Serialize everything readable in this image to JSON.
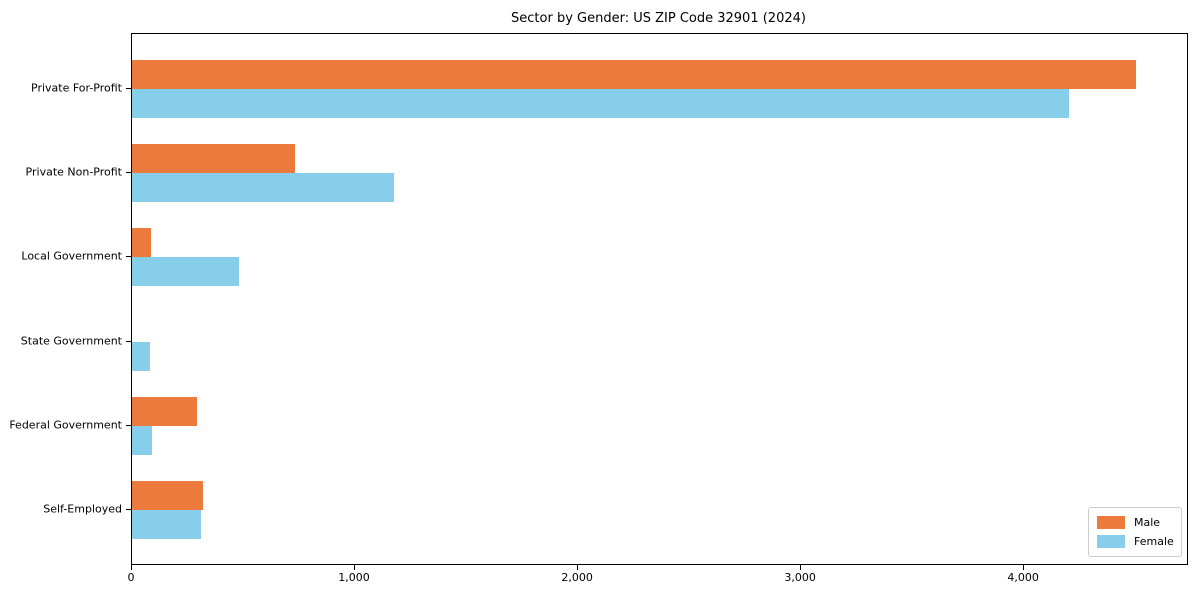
{
  "chart_data": {
    "type": "bar",
    "orientation": "horizontal",
    "title": "Sector by Gender: US ZIP Code 32901 (2024)",
    "xlabel": "",
    "ylabel": "",
    "categories": [
      "Private For-Profit",
      "Private Non-Profit",
      "Local Government",
      "State Government",
      "Federal Government",
      "Self-Employed"
    ],
    "series": [
      {
        "name": "Male",
        "color": "#ec7a3c",
        "values": [
          4500,
          730,
          85,
          0,
          290,
          320
        ]
      },
      {
        "name": "Female",
        "color": "#87ceeb",
        "values": [
          4200,
          1175,
          480,
          80,
          90,
          310
        ]
      }
    ],
    "xlim": [
      0,
      4730
    ],
    "x_ticks": [
      0,
      1000,
      2000,
      3000,
      4000
    ],
    "x_tick_labels": [
      "0",
      "1,000",
      "2,000",
      "3,000",
      "4,000"
    ],
    "grid": false,
    "legend": {
      "position": "lower right",
      "entries": [
        "Male",
        "Female"
      ]
    }
  }
}
